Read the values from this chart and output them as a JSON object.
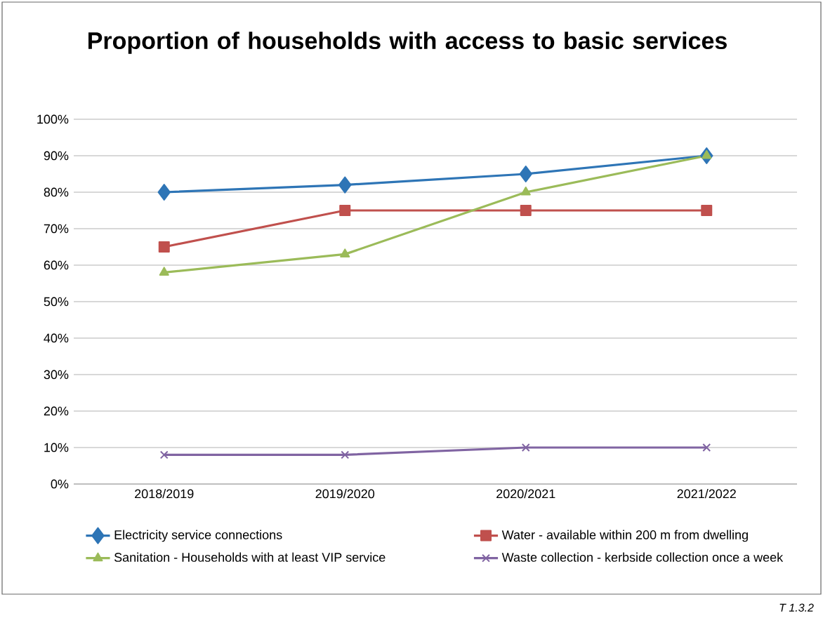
{
  "chart_data": {
    "type": "line",
    "title": "Proportion of households with access to basic services",
    "categories": [
      "2018/2019",
      "2019/2020",
      "2020/2021",
      "2021/2022"
    ],
    "series": [
      {
        "name": "Electricity  service connections",
        "color": "#2e75b6",
        "marker": "diamond",
        "values": [
          80,
          82,
          85,
          90
        ]
      },
      {
        "name": "Water - available within 200 m from dwelling",
        "color": "#c0504d",
        "marker": "square",
        "values": [
          65,
          75,
          75,
          75
        ]
      },
      {
        "name": "Sanitation - Households with at least VIP service",
        "color": "#9bbb59",
        "marker": "triangle",
        "values": [
          58,
          63,
          80,
          90
        ]
      },
      {
        "name": "Waste collection - kerbside collection once a week",
        "color": "#8064a2",
        "marker": "cross",
        "values": [
          8,
          8,
          10,
          10
        ]
      }
    ],
    "ylim": [
      0,
      100
    ],
    "yticks": [
      {
        "value": 0,
        "label": "0%"
      },
      {
        "value": 10,
        "label": "10%"
      },
      {
        "value": 20,
        "label": "20%"
      },
      {
        "value": 30,
        "label": "30%"
      },
      {
        "value": 40,
        "label": "40%"
      },
      {
        "value": 50,
        "label": "50%"
      },
      {
        "value": 60,
        "label": "60%"
      },
      {
        "value": 70,
        "label": "70%"
      },
      {
        "value": 80,
        "label": "80%"
      },
      {
        "value": 90,
        "label": "90%"
      },
      {
        "value": 100,
        "label": "100%"
      }
    ],
    "grid": "y",
    "legend": "bottom",
    "annotations": [
      "T 1.3.2"
    ]
  }
}
